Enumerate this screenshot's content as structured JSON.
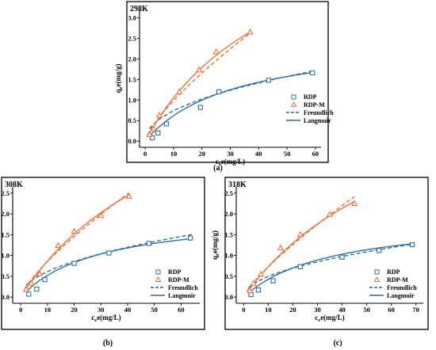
{
  "colors": {
    "rdp": "#2e6fa7",
    "rdpm": "#f0703a",
    "axis": "#000000"
  },
  "legend": {
    "series": [
      "RDP",
      "RDP-M"
    ],
    "models": [
      "Freundlich",
      "Langmuir"
    ]
  },
  "chart_data": [
    {
      "type": "scatter",
      "title": "298K",
      "panel_label": "(a)",
      "xlabel": "ce(mg/L)",
      "ylabel": "qe(mg/g)",
      "xlim": [
        -2,
        62
      ],
      "ylim": [
        -0.15,
        3.2
      ],
      "xticks": [
        0,
        10,
        20,
        30,
        40,
        50,
        60
      ],
      "yticks": [
        0.0,
        0.5,
        1.0,
        1.5,
        2.0,
        2.5,
        3.0
      ],
      "xtick_labels": [
        "0",
        "10",
        "20",
        "30",
        "40",
        "50",
        "60"
      ],
      "ytick_labels": [
        "0.0",
        "0.5",
        "1.0",
        "1.5",
        "2.0",
        "2.5",
        "3.0"
      ],
      "legend_placement": "right",
      "series": [
        {
          "name": "RDP",
          "marker": "square",
          "x": [
            2.5,
            4.5,
            7.5,
            19.5,
            26.0,
            43.5,
            59.0
          ],
          "y": [
            0.08,
            0.2,
            0.42,
            0.82,
            1.2,
            1.48,
            1.66
          ],
          "freundlich": {
            "K": 0.25,
            "n": 0.47,
            "xmin": 1.5,
            "xmax": 59
          },
          "langmuir": {
            "qm": 2.55,
            "KL": 0.032,
            "xmin": 1.5,
            "xmax": 59
          }
        },
        {
          "name": "RDP-M",
          "marker": "triangle",
          "x": [
            1.5,
            3.0,
            5.0,
            12.0,
            19.0,
            25.0,
            37.0
          ],
          "y": [
            0.16,
            0.3,
            0.63,
            1.2,
            1.73,
            2.17,
            2.65
          ],
          "freundlich": {
            "K": 0.175,
            "n": 0.75,
            "xmin": 0.8,
            "xmax": 37
          },
          "langmuir": {
            "qm": 6.1,
            "KL": 0.0208,
            "xmin": 0.8,
            "xmax": 37
          }
        }
      ]
    },
    {
      "type": "scatter",
      "title": "308K",
      "panel_label": "(b)",
      "xlabel": "ce(mg/L)",
      "ylabel": "qe(mg/g)",
      "xlim": [
        -3,
        67
      ],
      "ylim": [
        -0.15,
        2.65
      ],
      "xticks": [
        0,
        10,
        20,
        30,
        40,
        50,
        60
      ],
      "yticks": [
        0.0,
        0.5,
        1.0,
        1.5,
        2.0,
        2.5
      ],
      "xtick_labels": [
        "0",
        "10",
        "20",
        "30",
        "40",
        "50",
        "60"
      ],
      "ytick_labels": [
        "0.0",
        "0.5",
        "1.0",
        "1.5",
        "2.0",
        "2.5"
      ],
      "legend_placement": "bottom-right",
      "series": [
        {
          "name": "RDP",
          "marker": "square",
          "x": [
            3.0,
            6.0,
            9.0,
            20.0,
            33.0,
            48.0,
            63.5
          ],
          "y": [
            0.07,
            0.19,
            0.42,
            0.81,
            1.06,
            1.29,
            1.42
          ],
          "freundlich": {
            "K": 0.2,
            "n": 0.485,
            "xmin": 2,
            "xmax": 64
          },
          "langmuir": {
            "qm": 2.05,
            "KL": 0.034,
            "xmin": 2,
            "xmax": 64
          }
        },
        {
          "name": "RDP-M",
          "marker": "triangle",
          "x": [
            2.0,
            4.0,
            7.0,
            14.0,
            20.0,
            30.0,
            40.5
          ],
          "y": [
            0.18,
            0.33,
            0.56,
            1.24,
            1.58,
            1.96,
            2.42
          ],
          "freundlich": {
            "K": 0.145,
            "n": 0.77,
            "xmin": 1.5,
            "xmax": 40.5
          },
          "langmuir": {
            "qm": 6.2,
            "KL": 0.0162,
            "xmin": 1.5,
            "xmax": 40.5
          }
        }
      ]
    },
    {
      "type": "scatter",
      "title": "318K",
      "panel_label": "(c)",
      "xlabel": "ce(mg/L)",
      "ylabel": "qe(mg/g)",
      "xlim": [
        -3,
        73
      ],
      "ylim": [
        -0.15,
        2.65
      ],
      "xticks": [
        0,
        10,
        20,
        30,
        40,
        50,
        60,
        70
      ],
      "yticks": [
        0.0,
        0.5,
        1.0,
        1.5,
        2.0,
        2.5
      ],
      "xtick_labels": [
        "0",
        "10",
        "20",
        "30",
        "40",
        "50",
        "60",
        "70"
      ],
      "ytick_labels": [
        "0.0",
        "0.5",
        "1.0",
        "1.5",
        "2.0",
        "2.5"
      ],
      "legend_placement": "bottom-right",
      "series": [
        {
          "name": "RDP",
          "marker": "square",
          "x": [
            3.0,
            6.0,
            12.0,
            23.0,
            40.0,
            55.0,
            68.5
          ],
          "y": [
            0.06,
            0.17,
            0.39,
            0.73,
            0.96,
            1.12,
            1.26
          ],
          "freundlich": {
            "K": 0.16,
            "n": 0.49,
            "xmin": 2,
            "xmax": 69
          },
          "langmuir": {
            "qm": 1.95,
            "KL": 0.028,
            "xmin": 2,
            "xmax": 69
          }
        },
        {
          "name": "RDP-M",
          "marker": "triangle",
          "x": [
            2.5,
            4.0,
            7.0,
            15.0,
            23.0,
            35.0,
            45.0
          ],
          "y": [
            0.15,
            0.33,
            0.55,
            1.18,
            1.5,
            1.99,
            2.25
          ],
          "freundlich": {
            "K": 0.115,
            "n": 0.8,
            "xmin": 1.5,
            "xmax": 45
          },
          "langmuir": {
            "qm": 6.0,
            "KL": 0.0138,
            "xmin": 1.5,
            "xmax": 45
          }
        }
      ]
    }
  ]
}
